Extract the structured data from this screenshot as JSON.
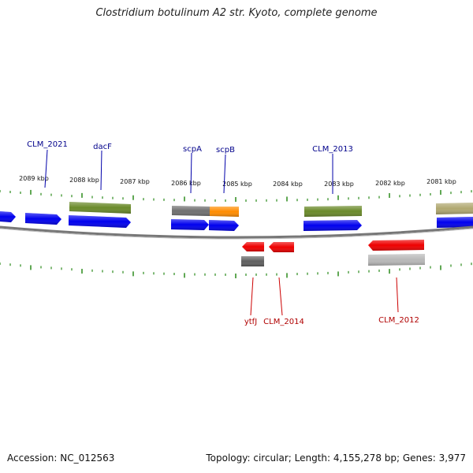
{
  "title": "Clostridium botulinum A2 str. Kyoto, complete genome",
  "footer": {
    "accession": "Accession: NC_012563",
    "summary": "Topology: circular; Length: 4,155,278 bp; Genes: 3,977"
  },
  "colors": {
    "forward_gene": "#0000ee",
    "reverse_gene": "#ee0000",
    "tick": "#2a8a1a",
    "backbone": "#777777",
    "cog_olive": "#6a8a2a",
    "cog_gray": "#707070",
    "cog_orange": "#ff8c00",
    "cog_khaki": "#b0a870",
    "cog_silver": "#b8b8b8",
    "fwd_label": "#00008b",
    "rev_label": "#b00000"
  },
  "ruler": [
    {
      "label": "2089 kbp"
    },
    {
      "label": "2088 kbp"
    },
    {
      "label": "2087 kbp"
    },
    {
      "label": "2086 kbp"
    },
    {
      "label": "2085 kbp"
    },
    {
      "label": "2084 kbp"
    },
    {
      "label": "2083 kbp"
    },
    {
      "label": "2082 kbp"
    },
    {
      "label": "2081 kbp"
    }
  ],
  "forward_labels": [
    {
      "text": "CLM_2021"
    },
    {
      "text": "dacF"
    },
    {
      "text": "scpA"
    },
    {
      "text": "scpB"
    },
    {
      "text": "CLM_2013"
    }
  ],
  "reverse_labels": [
    {
      "text": "ytfJ"
    },
    {
      "text": "CLM_2014"
    },
    {
      "text": "CLM_2012"
    }
  ]
}
